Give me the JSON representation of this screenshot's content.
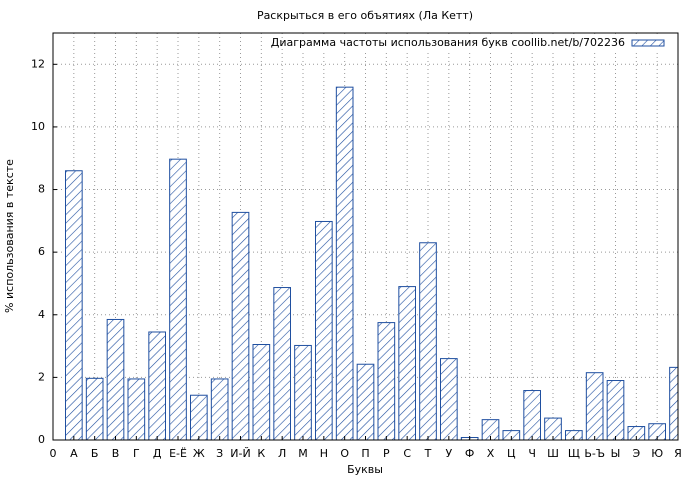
{
  "chart_data": {
    "type": "bar",
    "title": "Раскрыться в его объятиях (Ла Кетт)",
    "x_label": "Буквы",
    "y_label": "% использования в тексте",
    "categories": [
      "0",
      "А",
      "Б",
      "В",
      "Г",
      "Д",
      "Е-Ё",
      "Ж",
      "З",
      "И-Й",
      "К",
      "Л",
      "М",
      "Н",
      "О",
      "П",
      "Р",
      "С",
      "Т",
      "У",
      "Ф",
      "Х",
      "Ц",
      "Ч",
      "Ш",
      "Щ",
      "Ь-Ъ",
      "Ы",
      "Э",
      "Ю",
      "Я"
    ],
    "series": [
      {
        "name": "Диаграмма частоты использования букв coollib.net/b/702236",
        "color": "#1f4fa0",
        "values": [
          null,
          8.6,
          1.97,
          3.85,
          1.95,
          3.45,
          8.97,
          1.43,
          1.95,
          7.27,
          3.05,
          4.87,
          3.02,
          6.98,
          11.27,
          2.42,
          3.75,
          4.9,
          6.3,
          2.6,
          0.08,
          0.65,
          0.3,
          1.58,
          0.7,
          0.3,
          2.15,
          1.9,
          0.43,
          0.52,
          2.32
        ]
      }
    ],
    "ylim": [
      0,
      13
    ],
    "yticks": [
      0,
      2,
      4,
      6,
      8,
      10,
      12
    ],
    "grid": true,
    "legend": "upper right"
  }
}
